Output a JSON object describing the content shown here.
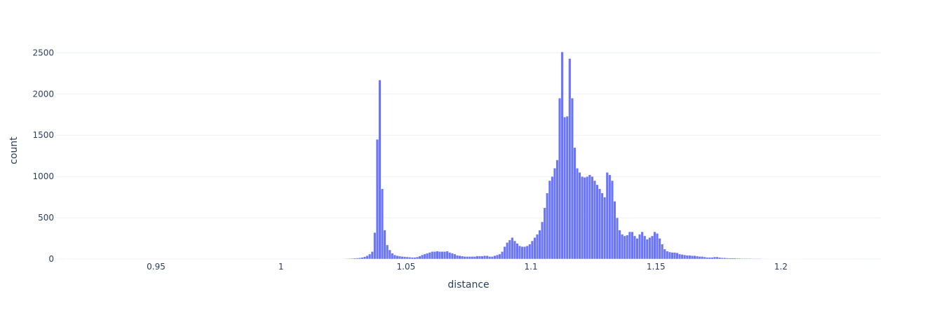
{
  "chart_data": {
    "type": "bar",
    "subtype": "histogram",
    "title": "",
    "xlabel": "distance",
    "ylabel": "count",
    "xlim": [
      0.91,
      1.24
    ],
    "ylim": [
      0,
      2630
    ],
    "bin_start": 0.91,
    "bin_width": 0.001,
    "x_ticks": [
      {
        "value": 0.95,
        "label": "0.95"
      },
      {
        "value": 1.0,
        "label": "1"
      },
      {
        "value": 1.05,
        "label": "1.05"
      },
      {
        "value": 1.1,
        "label": "1.1"
      },
      {
        "value": 1.15,
        "label": "1.15"
      },
      {
        "value": 1.2,
        "label": "1.2"
      }
    ],
    "y_ticks": [
      {
        "value": 0,
        "label": "0"
      },
      {
        "value": 500,
        "label": "500"
      },
      {
        "value": 1000,
        "label": "1000"
      },
      {
        "value": 1500,
        "label": "1500"
      },
      {
        "value": 2000,
        "label": "2000"
      },
      {
        "value": 2500,
        "label": "2500"
      }
    ],
    "grid": true,
    "legend": "none",
    "colors": {
      "bar": "#636efa",
      "grid": "#ebf0f8",
      "text": "#2a3f5f",
      "axis_line": "#ebf0f8"
    },
    "values": [
      2,
      1,
      1,
      1,
      2,
      1,
      1,
      1,
      1,
      1,
      1,
      1,
      1,
      1,
      1,
      1,
      1,
      1,
      1,
      1,
      1,
      1,
      1,
      1,
      1,
      1,
      1,
      1,
      1,
      1,
      1,
      1,
      1,
      1,
      1,
      1,
      1,
      1,
      1,
      1,
      1,
      1,
      1,
      1,
      1,
      1,
      1,
      1,
      1,
      1,
      1,
      1,
      1,
      1,
      1,
      1,
      1,
      1,
      1,
      1,
      1,
      1,
      1,
      1,
      1,
      1,
      1,
      1,
      1,
      1,
      1,
      1,
      1,
      1,
      1,
      1,
      1,
      1,
      1,
      1,
      1,
      1,
      1,
      1,
      1,
      1,
      1,
      1,
      1,
      1,
      1,
      1,
      1,
      1,
      1,
      1,
      1,
      1,
      1,
      1,
      1,
      1,
      1,
      1,
      1,
      1,
      2,
      2,
      2,
      2,
      2,
      3,
      3,
      3,
      4,
      4,
      5,
      6,
      8,
      10,
      12,
      15,
      20,
      28,
      40,
      60,
      90,
      320,
      1450,
      2170,
      850,
      350,
      170,
      110,
      70,
      50,
      40,
      35,
      30,
      28,
      25,
      22,
      20,
      20,
      25,
      35,
      50,
      60,
      70,
      80,
      90,
      90,
      95,
      90,
      90,
      90,
      95,
      80,
      70,
      60,
      45,
      40,
      35,
      30,
      30,
      30,
      30,
      30,
      35,
      35,
      35,
      40,
      40,
      30,
      30,
      40,
      50,
      60,
      90,
      150,
      200,
      230,
      260,
      220,
      190,
      160,
      150,
      150,
      160,
      180,
      220,
      260,
      300,
      350,
      450,
      620,
      800,
      950,
      1000,
      1100,
      1200,
      1950,
      2510,
      1720,
      1730,
      2430,
      1950,
      1350,
      1100,
      1050,
      1000,
      990,
      1000,
      1020,
      1000,
      950,
      900,
      850,
      800,
      750,
      1050,
      1020,
      950,
      700,
      500,
      350,
      300,
      280,
      290,
      330,
      330,
      280,
      250,
      300,
      330,
      280,
      240,
      260,
      280,
      330,
      310,
      250,
      180,
      120,
      95,
      85,
      80,
      80,
      75,
      60,
      55,
      50,
      45,
      45,
      40,
      40,
      35,
      30,
      30,
      25,
      20,
      20,
      20,
      25,
      25,
      20,
      15,
      15,
      12,
      10,
      10,
      10,
      8,
      8,
      7,
      7,
      6,
      6,
      5,
      5,
      5,
      5,
      4,
      4,
      4,
      3,
      3,
      3,
      3,
      3,
      2,
      2,
      2,
      2,
      2,
      2,
      2,
      2,
      1,
      1,
      1,
      1,
      1,
      1,
      1,
      1,
      1,
      1,
      1,
      1,
      1,
      1,
      1,
      1,
      1,
      1,
      1,
      1,
      1,
      1
    ]
  }
}
